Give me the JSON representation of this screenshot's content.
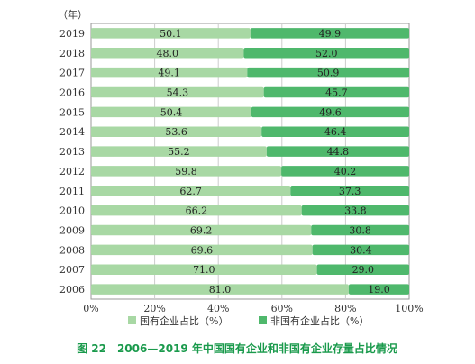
{
  "chart_data": {
    "type": "bar",
    "orientation": "horizontal",
    "stacked": "percent",
    "unit_label": "（年）",
    "categories": [
      "2019",
      "2018",
      "2017",
      "2016",
      "2015",
      "2014",
      "2013",
      "2012",
      "2011",
      "2010",
      "2009",
      "2008",
      "2007",
      "2006"
    ],
    "series": [
      {
        "name": "国有企业占比（%）",
        "values": [
          50.1,
          48.0,
          49.1,
          54.3,
          50.4,
          53.6,
          55.2,
          59.8,
          62.7,
          66.2,
          69.2,
          69.6,
          71.0,
          81.0
        ]
      },
      {
        "name": "非国有企业占比（%）",
        "values": [
          49.9,
          52.0,
          50.9,
          45.7,
          49.6,
          46.4,
          44.8,
          40.2,
          37.3,
          33.8,
          30.8,
          30.4,
          29.0,
          19.0
        ]
      }
    ],
    "value_labels": [
      [
        "50.1",
        "48.0",
        "49.1",
        "54.3",
        "50.4",
        "53.6",
        "55.2",
        "59.8",
        "62.7",
        "66.2",
        "69.2",
        "69.6",
        "71.0",
        "81.0"
      ],
      [
        "49.9",
        "52.0",
        "50.9",
        "45.7",
        "49.6",
        "46.4",
        "44.8",
        "40.2",
        "37.3",
        "33.8",
        "30.8",
        "30.4",
        "29.0",
        "19.0"
      ]
    ],
    "xlim": [
      0,
      100
    ],
    "xticks": [
      "0%",
      "20%",
      "40%",
      "60%",
      "80%",
      "100%"
    ],
    "grid": true,
    "legend_position": "bottom",
    "colors": [
      "#a8d8a4",
      "#4fb86c"
    ],
    "caption": "图 22　2006—2019 年中国国有企业和非国有企业存量占比情况"
  }
}
